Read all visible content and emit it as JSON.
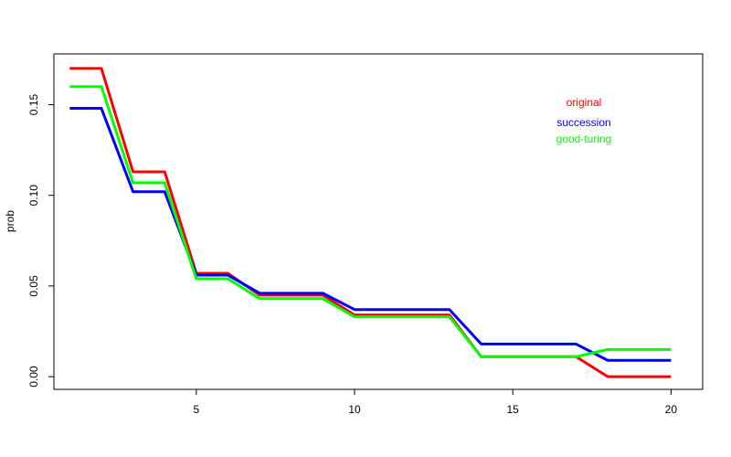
{
  "chart_data": {
    "type": "line",
    "title": "",
    "xlabel": "",
    "ylabel": "prob",
    "x": [
      1,
      2,
      3,
      4,
      5,
      6,
      7,
      8,
      9,
      10,
      11,
      12,
      13,
      14,
      15,
      16,
      17,
      18,
      19,
      20
    ],
    "xlim": [
      0.5,
      21.0
    ],
    "ylim": [
      -0.007,
      0.178
    ],
    "x_ticks": [
      "5",
      "10",
      "15",
      "20"
    ],
    "y_ticks": [
      "0.00",
      "0.05",
      "0.10",
      "0.15"
    ],
    "grid": false,
    "legend_position": "top-right",
    "series": [
      {
        "name": "original",
        "color": "#ff0000",
        "values": [
          0.17,
          0.17,
          0.113,
          0.113,
          0.057,
          0.057,
          0.045,
          0.045,
          0.045,
          0.034,
          0.034,
          0.034,
          0.034,
          0.011,
          0.011,
          0.011,
          0.011,
          0.0,
          0.0,
          0.0
        ]
      },
      {
        "name": "succession",
        "color": "#0000ff",
        "values": [
          0.148,
          0.148,
          0.102,
          0.102,
          0.056,
          0.056,
          0.046,
          0.046,
          0.046,
          0.037,
          0.037,
          0.037,
          0.037,
          0.018,
          0.018,
          0.018,
          0.018,
          0.009,
          0.009,
          0.009
        ]
      },
      {
        "name": "good-turing",
        "color": "#00ff00",
        "values": [
          0.16,
          0.16,
          0.107,
          0.107,
          0.054,
          0.054,
          0.043,
          0.043,
          0.043,
          0.033,
          0.033,
          0.033,
          0.033,
          0.011,
          0.011,
          0.011,
          0.011,
          0.015,
          0.015,
          0.015
        ]
      }
    ]
  }
}
